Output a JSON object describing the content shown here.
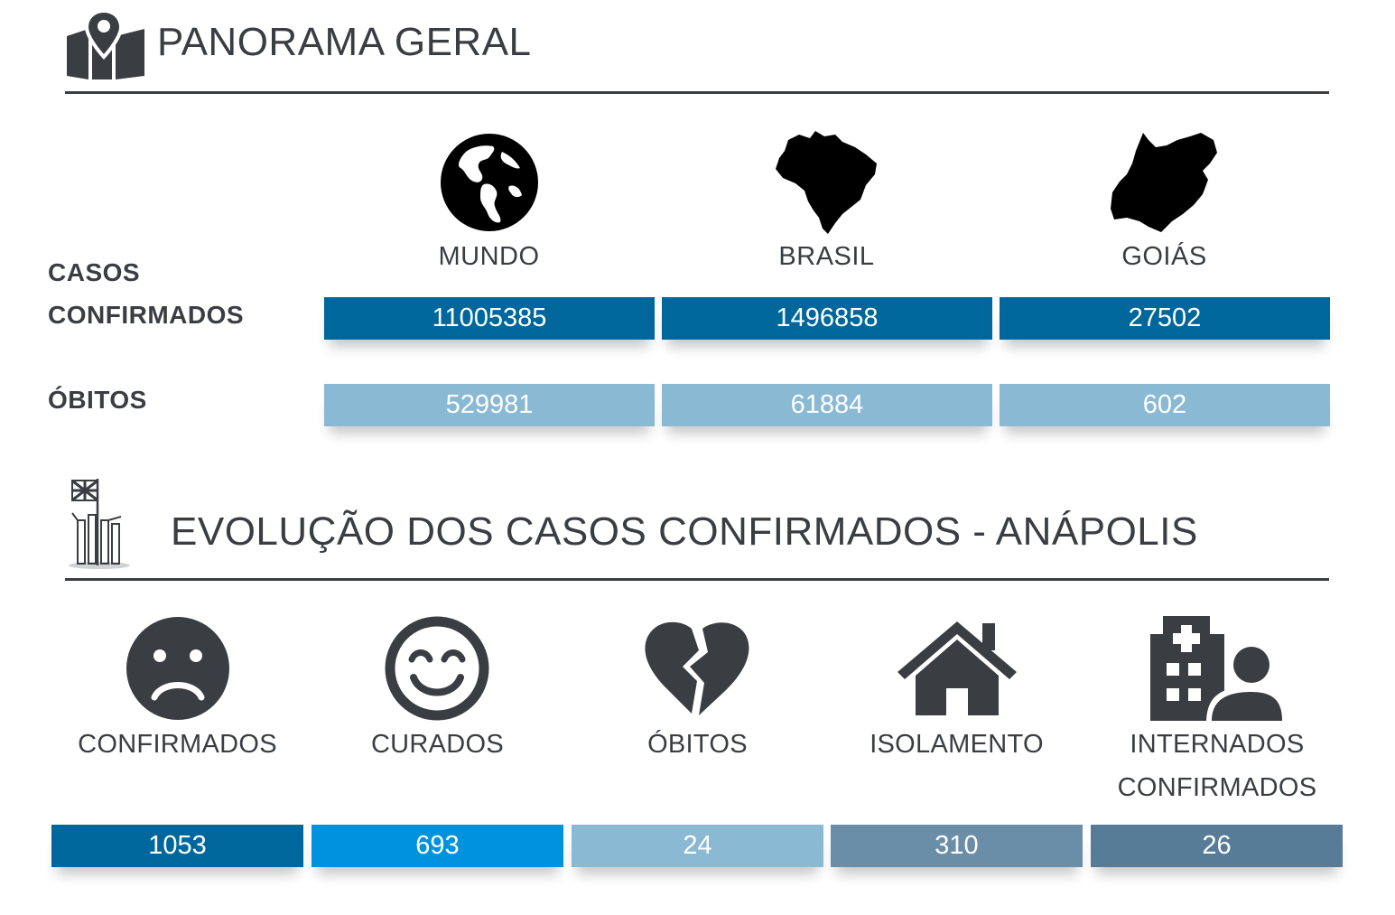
{
  "colors": {
    "dark_text": "#3a3d42",
    "bar_dark_blue": "#00679c",
    "bar_bright_blue": "#0092dd",
    "bar_light_blue": "#8ab9d4",
    "bar_steel": "#6b8ea8",
    "bar_slate": "#577c97"
  },
  "panorama": {
    "icon": "map-marker-icon",
    "title": "PANORAMA GERAL",
    "columns": [
      {
        "icon": "globe-icon",
        "label": "MUNDO"
      },
      {
        "icon": "brazil-map-icon",
        "label": "BRASIL"
      },
      {
        "icon": "goias-map-icon",
        "label": "GOIÁS"
      }
    ],
    "rows": [
      {
        "label": "CASOS CONFIRMADOS",
        "values": [
          "11005385",
          "1496858",
          "27502"
        ]
      },
      {
        "label": "ÓBITOS",
        "values": [
          "529981",
          "61884",
          "602"
        ]
      }
    ]
  },
  "evolucao": {
    "icon": "anapolis-monument-icon",
    "title": "EVOLUÇÃO DOS CASOS CONFIRMADOS - ANÁPOLIS",
    "items": [
      {
        "icon": "sad-face-icon",
        "label": "CONFIRMADOS",
        "value": "1053"
      },
      {
        "icon": "happy-face-icon",
        "label": "CURADOS",
        "value": "693"
      },
      {
        "icon": "broken-heart-icon",
        "label": "ÓBITOS",
        "value": "24"
      },
      {
        "icon": "house-icon",
        "label": "ISOLAMENTO",
        "value": "310"
      },
      {
        "icon": "hospital-person-icon",
        "label": "INTERNADOS CONFIRMADOS",
        "value": "26"
      }
    ]
  }
}
